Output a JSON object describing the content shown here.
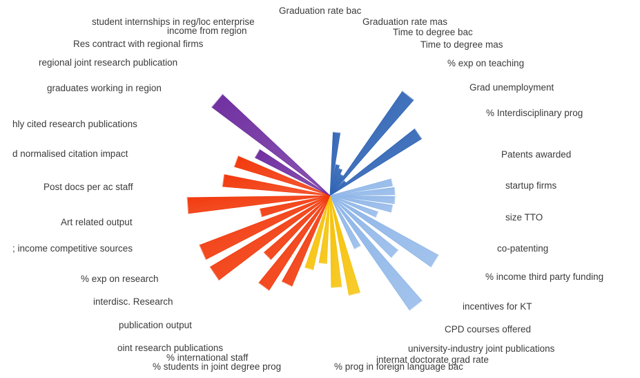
{
  "chart_data": {
    "type": "radial-bar",
    "title": "",
    "colors": {
      "blue": "#2e63b4",
      "light_blue": "#8fb6e8",
      "yellow": "#f6c105",
      "red": "#f2390c",
      "purple": "#7030a0"
    },
    "value_scale": "relative (0-1), no axis shown",
    "categories": [
      {
        "label": "Graduation rate bac",
        "group": "blue",
        "value": 0.4
      },
      {
        "label": "Graduation rate mas",
        "group": "blue",
        "value": 0.2
      },
      {
        "label": "Time to degree bac",
        "group": "blue",
        "value": 0.18
      },
      {
        "label": "Time to degree mas",
        "group": "blue",
        "value": 0.15
      },
      {
        "label": "% exp on teaching",
        "group": "blue",
        "value": 0.8
      },
      {
        "label": "Grad unemployment",
        "group": "blue",
        "value": 0.13
      },
      {
        "label": "% Interdisciplinary prog",
        "group": "blue",
        "value": 0.68
      },
      {
        "label": "Patents awarded",
        "group": "light_blue",
        "value": 0.4
      },
      {
        "label": "startup firms",
        "group": "light_blue",
        "value": 0.41
      },
      {
        "label": "size TTO",
        "group": "light_blue",
        "value": 0.41
      },
      {
        "label": "co-patenting",
        "group": "light_blue",
        "value": 0.4
      },
      {
        "label": "% income third party funding",
        "group": "light_blue",
        "value": 0.32
      },
      {
        "label": "incentives for KT",
        "group": "light_blue",
        "value": 0.78
      },
      {
        "label": "CPD courses offered",
        "group": "light_blue",
        "value": 0.55
      },
      {
        "label": "university-industry joint publications",
        "group": "light_blue",
        "value": 0.88
      },
      {
        "label": "internat doctorate grad rate",
        "group": "light_blue",
        "value": 0.37
      },
      {
        "label": "% prog in foreign language bac",
        "group": "yellow",
        "value": 0.64
      },
      {
        "label": "% students in joint degree prog",
        "group": "yellow",
        "value": 0.58
      },
      {
        "label": "% international staff",
        "group": "yellow",
        "value": 0.43
      },
      {
        "label": "joint research publications",
        "group": "yellow",
        "value": 0.48
      },
      {
        "label": "publication output",
        "group": "red",
        "value": 0.62
      },
      {
        "label": "interdisc. Research",
        "group": "red",
        "value": 0.71
      },
      {
        "label": "% exp on research",
        "group": "red",
        "value": 0.55
      },
      {
        "label": "income competitive sources",
        "group": "red",
        "value": 0.88
      },
      {
        "label": "Art related output",
        "group": "red",
        "value": 0.88
      },
      {
        "label": "Post docs per ac staff",
        "group": "red",
        "value": 0.45
      },
      {
        "label": "normalised citation impact",
        "group": "red",
        "value": 0.9
      },
      {
        "label": "highly cited research publications",
        "group": "red",
        "value": 0.68
      },
      {
        "label": "graduates working in region",
        "group": "red",
        "value": 0.63
      },
      {
        "label": "regional joint research publication",
        "group": "purple",
        "value": 0.53
      },
      {
        "label": "Res contract with regional firms",
        "group": "purple",
        "value": 0.93
      },
      {
        "label": "income from region",
        "group": "purple",
        "value": 0.0
      },
      {
        "label": "student internships in reg/loc enterprise",
        "group": "purple",
        "value": 0.0
      }
    ]
  },
  "labels": [
    "Graduation rate bac",
    "student internships in reg/loc enterprise",
    "Graduation rate mas",
    "income from region",
    "Time to degree bac",
    "Res contract with regional firms",
    "Time to degree mas",
    "regional joint research publication",
    "% exp on teaching",
    "graduates working in region",
    "Grad unemployment",
    "% Interdisciplinary prog",
    "hly cited research publications",
    "d normalised citation impact",
    "Patents awarded",
    "Post docs per ac staff",
    "startup firms",
    "Art related output",
    "size TTO",
    "co-patenting",
    "; income competitive sources",
    "% income third party funding",
    "% exp on research",
    "interdisc. Research",
    "incentives for KT",
    "publication output",
    "CPD courses offered",
    "university-industry joint publications",
    "oint research publications",
    "% international staff",
    "internat doctorate grad rate",
    "% students in joint degree prog",
    "% prog in foreign language bac"
  ]
}
